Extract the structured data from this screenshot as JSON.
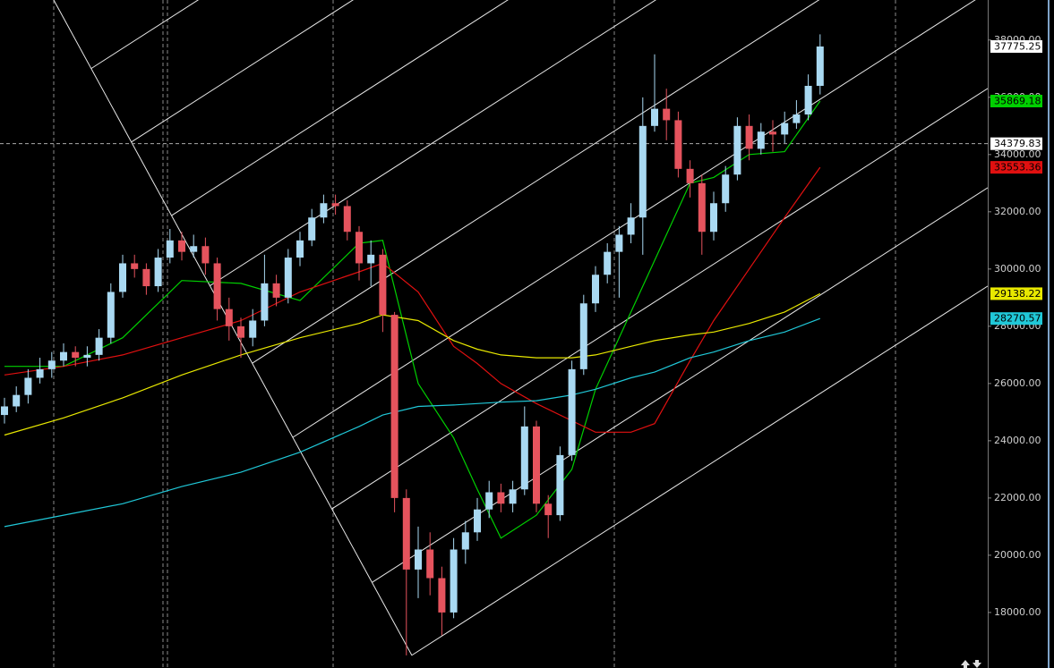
{
  "chart_data": {
    "type": "candlestick",
    "ylim": [
      16060,
      39400
    ],
    "yticks": [
      {
        "value": 18000,
        "label": "18000.00"
      },
      {
        "value": 20000,
        "label": "20000.00"
      },
      {
        "value": 22000,
        "label": "22000.00"
      },
      {
        "value": 24000,
        "label": "24000.00"
      },
      {
        "value": 26000,
        "label": "26000.00"
      },
      {
        "value": 28000,
        "label": "28000.00"
      },
      {
        "value": 30000,
        "label": "30000.00"
      },
      {
        "value": 32000,
        "label": "32000.00"
      },
      {
        "value": 34000,
        "label": "34000.00"
      },
      {
        "value": 36000,
        "label": "36000.00"
      },
      {
        "value": 38000,
        "label": "38000.00"
      }
    ],
    "up_color": "#a9d9f2",
    "down_color": "#e5535d",
    "candles": [
      [
        24900,
        25500,
        24600,
        25200
      ],
      [
        25200,
        25900,
        25000,
        25600
      ],
      [
        25600,
        26500,
        25300,
        26200
      ],
      [
        26200,
        26900,
        26000,
        26500
      ],
      [
        26500,
        27100,
        26200,
        26800
      ],
      [
        26800,
        27400,
        26600,
        27100
      ],
      [
        27100,
        27300,
        26600,
        26900
      ],
      [
        26900,
        27300,
        26600,
        27000
      ],
      [
        27000,
        27900,
        26800,
        27600
      ],
      [
        27600,
        29500,
        27400,
        29200
      ],
      [
        29200,
        30500,
        29000,
        30200
      ],
      [
        30200,
        30500,
        29700,
        30000
      ],
      [
        30000,
        30200,
        29100,
        29400
      ],
      [
        29400,
        30700,
        29200,
        30400
      ],
      [
        30400,
        31400,
        30200,
        31000
      ],
      [
        31000,
        31300,
        30300,
        30600
      ],
      [
        30600,
        31200,
        30400,
        30800
      ],
      [
        30800,
        31100,
        29800,
        30200
      ],
      [
        30200,
        30400,
        28200,
        28600
      ],
      [
        28600,
        29000,
        27500,
        28000
      ],
      [
        28000,
        28300,
        26900,
        27600
      ],
      [
        27600,
        28600,
        27300,
        28200
      ],
      [
        28200,
        30500,
        28000,
        29500
      ],
      [
        29500,
        29800,
        28700,
        29000
      ],
      [
        29000,
        30700,
        28800,
        30400
      ],
      [
        30400,
        31300,
        30100,
        31000
      ],
      [
        31000,
        32100,
        30800,
        31800
      ],
      [
        31800,
        32600,
        31600,
        32300
      ],
      [
        32300,
        32600,
        31900,
        32200
      ],
      [
        32200,
        32400,
        31000,
        31300
      ],
      [
        31300,
        31500,
        29600,
        30200
      ],
      [
        30200,
        31000,
        29400,
        30500
      ],
      [
        30500,
        30700,
        27800,
        28400
      ],
      [
        28400,
        28500,
        21500,
        22000
      ],
      [
        22000,
        22300,
        16500,
        19500
      ],
      [
        19500,
        21000,
        18500,
        20200
      ],
      [
        20200,
        20800,
        18600,
        19200
      ],
      [
        19200,
        19600,
        17200,
        18000
      ],
      [
        18000,
        20600,
        17800,
        20200
      ],
      [
        20200,
        21200,
        19700,
        20800
      ],
      [
        20800,
        22000,
        20500,
        21600
      ],
      [
        21600,
        22600,
        21300,
        22200
      ],
      [
        22200,
        22500,
        21500,
        21800
      ],
      [
        21800,
        22600,
        21500,
        22300
      ],
      [
        22300,
        25200,
        22100,
        24500
      ],
      [
        24500,
        24700,
        21500,
        21800
      ],
      [
        21800,
        22100,
        20600,
        21400
      ],
      [
        21400,
        23800,
        21200,
        23500
      ],
      [
        23500,
        26800,
        23300,
        26500
      ],
      [
        26500,
        29100,
        26300,
        28800
      ],
      [
        28800,
        30100,
        28500,
        29800
      ],
      [
        29800,
        30900,
        29500,
        30600
      ],
      [
        30600,
        31500,
        29000,
        31200
      ],
      [
        31200,
        32300,
        30900,
        31800
      ],
      [
        31800,
        36000,
        30500,
        35000
      ],
      [
        35000,
        37500,
        34800,
        35600
      ],
      [
        35600,
        36300,
        34500,
        35200
      ],
      [
        35200,
        35500,
        33200,
        33500
      ],
      [
        33500,
        33800,
        32500,
        33000
      ],
      [
        33000,
        33300,
        30500,
        31300
      ],
      [
        31300,
        32700,
        31000,
        32300
      ],
      [
        32300,
        33600,
        32000,
        33300
      ],
      [
        33300,
        35300,
        33100,
        35000
      ],
      [
        35000,
        35400,
        33800,
        34200
      ],
      [
        34200,
        35100,
        34000,
        34800
      ],
      [
        34800,
        35200,
        34100,
        34700
      ],
      [
        34700,
        35500,
        34400,
        35100
      ],
      [
        35100,
        35900,
        34900,
        35400
      ],
      [
        35400,
        36800,
        35200,
        36400
      ],
      [
        36400,
        38200,
        36100,
        37775.25
      ]
    ],
    "ma_x": [
      0,
      5,
      10,
      15,
      20,
      25,
      30,
      32,
      35,
      38,
      40,
      42,
      45,
      48,
      50,
      53,
      55,
      58,
      60,
      63,
      66,
      69
    ],
    "series": [
      {
        "color": "#00d000",
        "tag_text": "#000000",
        "values": [
          26600,
          26600,
          27600,
          29600,
          29500,
          28900,
          30900,
          31000,
          26000,
          24100,
          22300,
          20600,
          21400,
          23000,
          25800,
          28500,
          30300,
          33000,
          33200,
          34000,
          34100,
          35869.18
        ]
      },
      {
        "color": "#e01010",
        "tag_text": "#000000",
        "values": [
          26300,
          26600,
          27000,
          27600,
          28200,
          29200,
          29900,
          30200,
          29200,
          27300,
          26700,
          26000,
          25300,
          24700,
          24300,
          24300,
          24600,
          26800,
          28200,
          30000,
          31800,
          33553.36
        ]
      },
      {
        "color": "#e8e800",
        "tag_text": "#000000",
        "values": [
          24200,
          24800,
          25500,
          26300,
          27000,
          27600,
          28100,
          28400,
          28200,
          27500,
          27200,
          27000,
          26900,
          26900,
          27000,
          27300,
          27500,
          27700,
          27800,
          28100,
          28500,
          29138.22
        ]
      },
      {
        "color": "#20c8d8",
        "tag_text": "#000000",
        "values": [
          21000,
          21400,
          21800,
          22400,
          22900,
          23600,
          24500,
          24900,
          25200,
          25250,
          25300,
          25350,
          25400,
          25600,
          25800,
          26200,
          26400,
          26900,
          27100,
          27500,
          27800,
          28270.57
        ]
      }
    ],
    "crosshair": 34379.83
  }
}
